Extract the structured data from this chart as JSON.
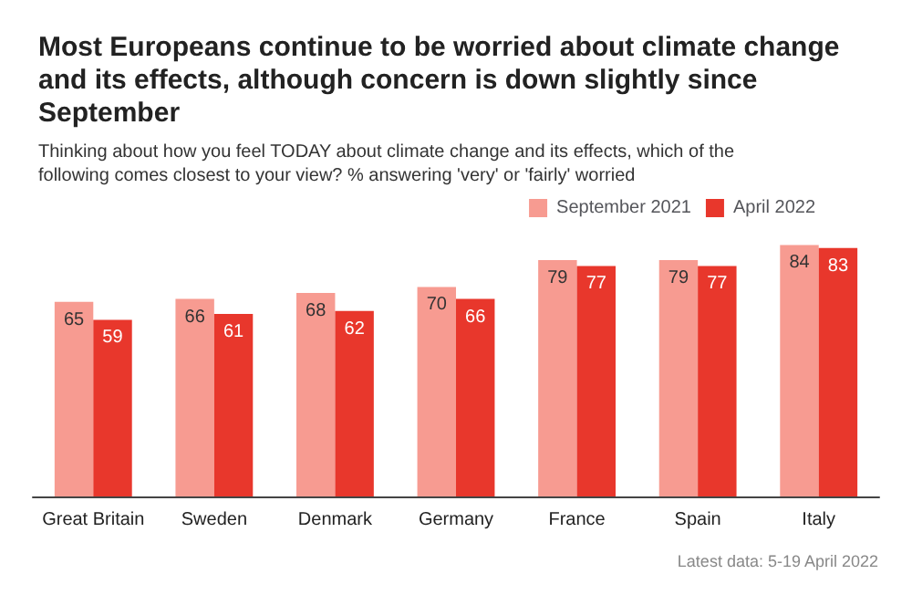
{
  "chart_data": {
    "type": "bar",
    "title": "Most Europeans continue to be worried about climate change and its effects, although concern is down slightly since September",
    "subtitle": "Thinking about how you feel TODAY about climate change and its effects, which of the following comes closest to your view? % answering 'very' or 'fairly' worried",
    "categories": [
      "Great Britain",
      "Sweden",
      "Denmark",
      "Germany",
      "France",
      "Spain",
      "Italy"
    ],
    "series": [
      {
        "name": "September 2021",
        "color": "#f79b91",
        "values": [
          65,
          66,
          68,
          70,
          79,
          79,
          84
        ]
      },
      {
        "name": "April 2022",
        "color": "#e8372c",
        "values": [
          59,
          61,
          62,
          66,
          77,
          77,
          83
        ]
      }
    ],
    "data_labels": true,
    "legend": "top",
    "annotations": [
      "Latest data: 5-19 April 2022"
    ]
  }
}
